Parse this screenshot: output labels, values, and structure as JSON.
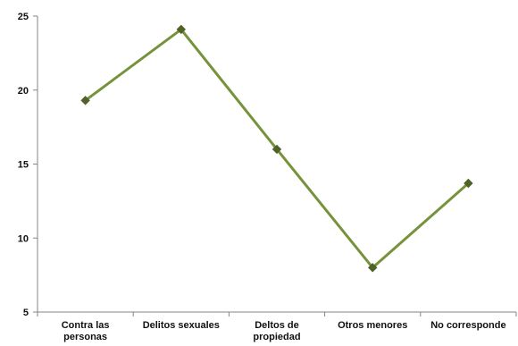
{
  "chart_data": {
    "type": "line",
    "categories": [
      [
        "Contra las",
        "personas"
      ],
      [
        "Delitos sexuales"
      ],
      [
        "Deltos de",
        "propiedad"
      ],
      [
        "Otros menores"
      ],
      [
        "No corresponde"
      ]
    ],
    "values": [
      19.3,
      24.1,
      16.0,
      8.0,
      13.7
    ],
    "ylim": [
      5,
      25
    ],
    "yticks": [
      "5",
      "10",
      "15",
      "20",
      "25"
    ],
    "grid": false,
    "legend": "none",
    "colors": {
      "line": "#76933c",
      "marker": "#4f6228",
      "axis": "#868686",
      "text": "#111111"
    }
  }
}
